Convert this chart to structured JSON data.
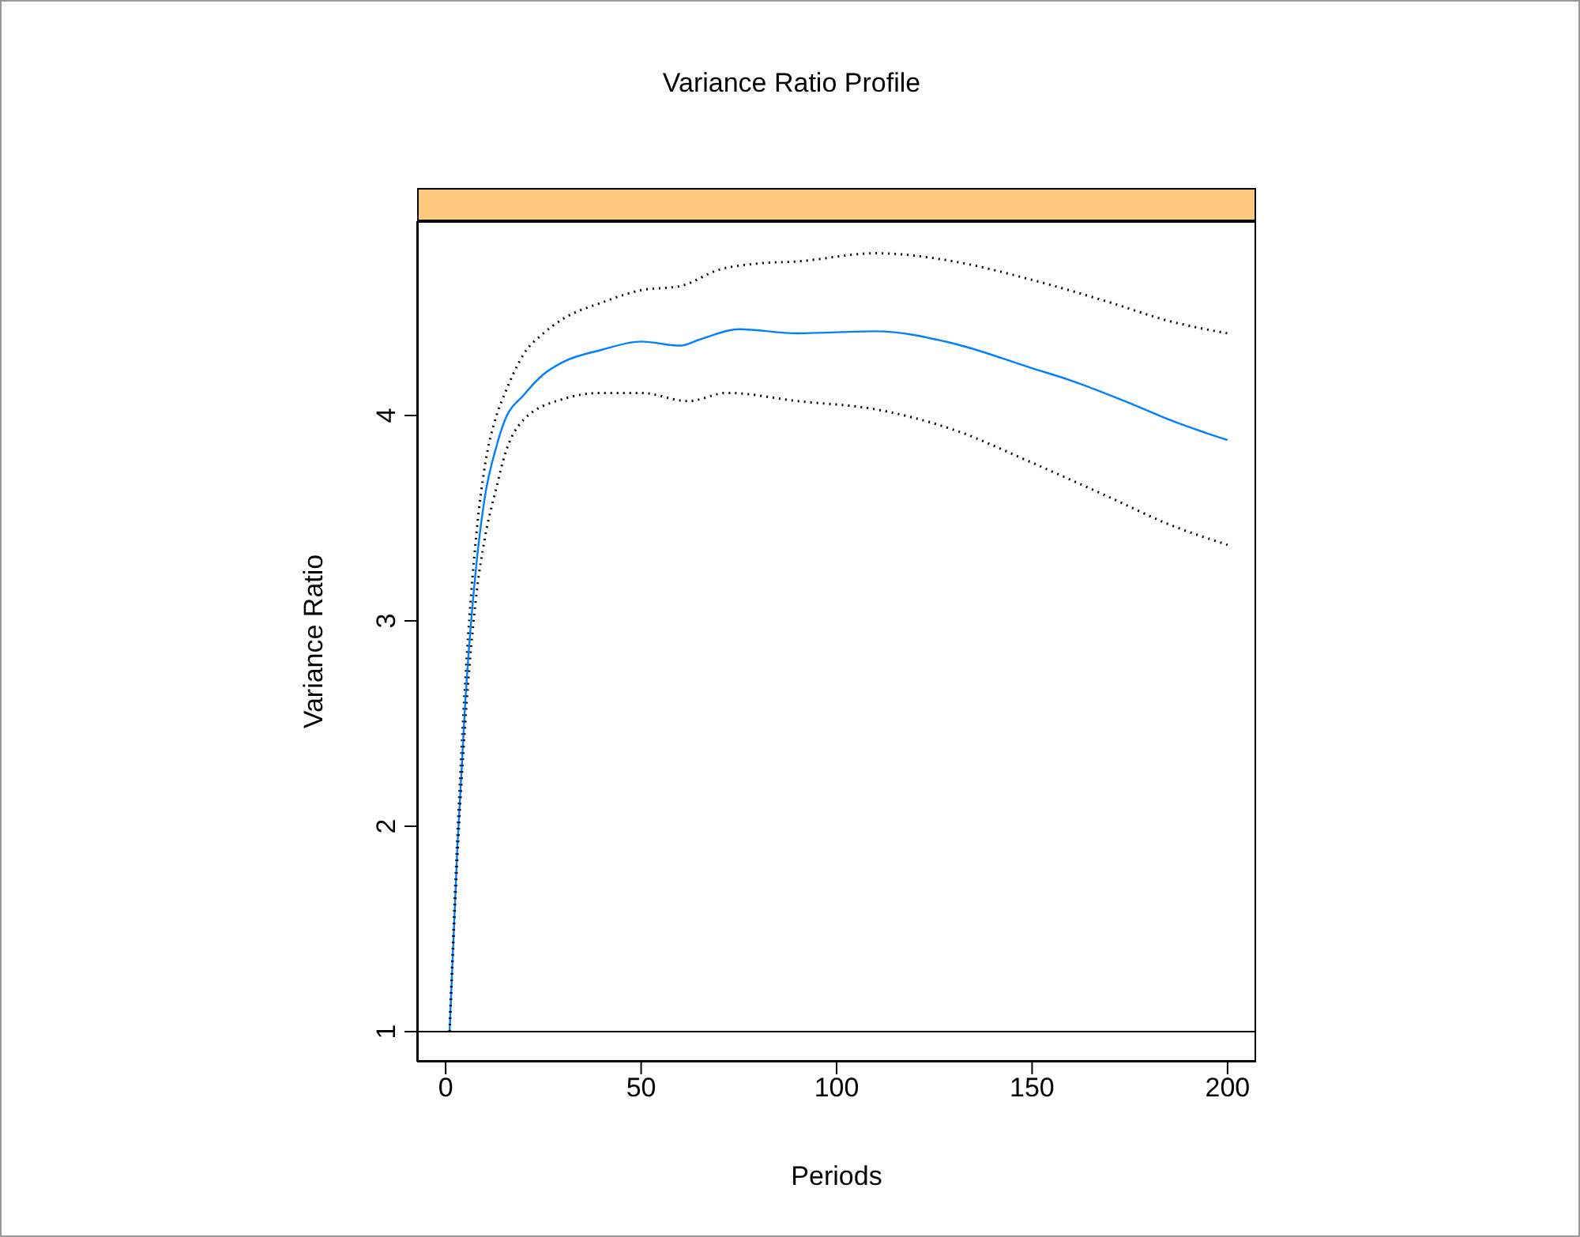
{
  "chart_data": {
    "type": "line",
    "title": "Variance Ratio Profile",
    "xlabel": "Periods",
    "ylabel": "Variance Ratio",
    "xlim": [
      -7.3,
      207.3
    ],
    "xticks": [
      0,
      50,
      100,
      150,
      200
    ],
    "ylim": [
      0.854,
      4.946
    ],
    "yticks": [
      1,
      2,
      3,
      4
    ],
    "ref_lines": [
      {
        "axis": "y",
        "value": 1,
        "color": "#000000"
      }
    ],
    "series": [
      {
        "color": "#000000",
        "line_style": "dotted",
        "x": [
          1,
          3,
          5,
          8,
          10,
          13,
          15,
          20,
          25,
          30,
          40,
          50,
          60,
          70,
          80,
          90,
          110,
          130,
          150,
          170,
          185,
          200
        ],
        "values": [
          1,
          1.95,
          2.7,
          3.45,
          3.75,
          4.0,
          4.1,
          4.3,
          4.4,
          4.47,
          4.55,
          4.61,
          4.63,
          4.71,
          4.74,
          4.75,
          4.79,
          4.75,
          4.66,
          4.55,
          4.46,
          4.4
        ]
      },
      {
        "color": "#0080ff",
        "line_style": "solid",
        "x": [
          1,
          3,
          5,
          8,
          10,
          13,
          15,
          20,
          25,
          30,
          40,
          50,
          60,
          65,
          75,
          90,
          110,
          130,
          150,
          160,
          175,
          185,
          200
        ],
        "values": [
          1,
          1.9,
          2.6,
          3.3,
          3.6,
          3.85,
          3.97,
          4.1,
          4.2,
          4.26,
          4.32,
          4.36,
          4.34,
          4.37,
          4.42,
          4.4,
          4.41,
          4.35,
          4.23,
          4.17,
          4.06,
          3.98,
          3.88
        ]
      },
      {
        "color": "#000000",
        "line_style": "dotted",
        "x": [
          1,
          3,
          5,
          8,
          10,
          13,
          15,
          20,
          30,
          40,
          50,
          62,
          72,
          90,
          110,
          130,
          150,
          170,
          185,
          200
        ],
        "values": [
          1,
          1.85,
          2.5,
          3.15,
          3.4,
          3.65,
          3.8,
          3.98,
          4.08,
          4.11,
          4.11,
          4.07,
          4.11,
          4.07,
          4.03,
          3.93,
          3.77,
          3.6,
          3.47,
          3.37
        ]
      }
    ]
  }
}
